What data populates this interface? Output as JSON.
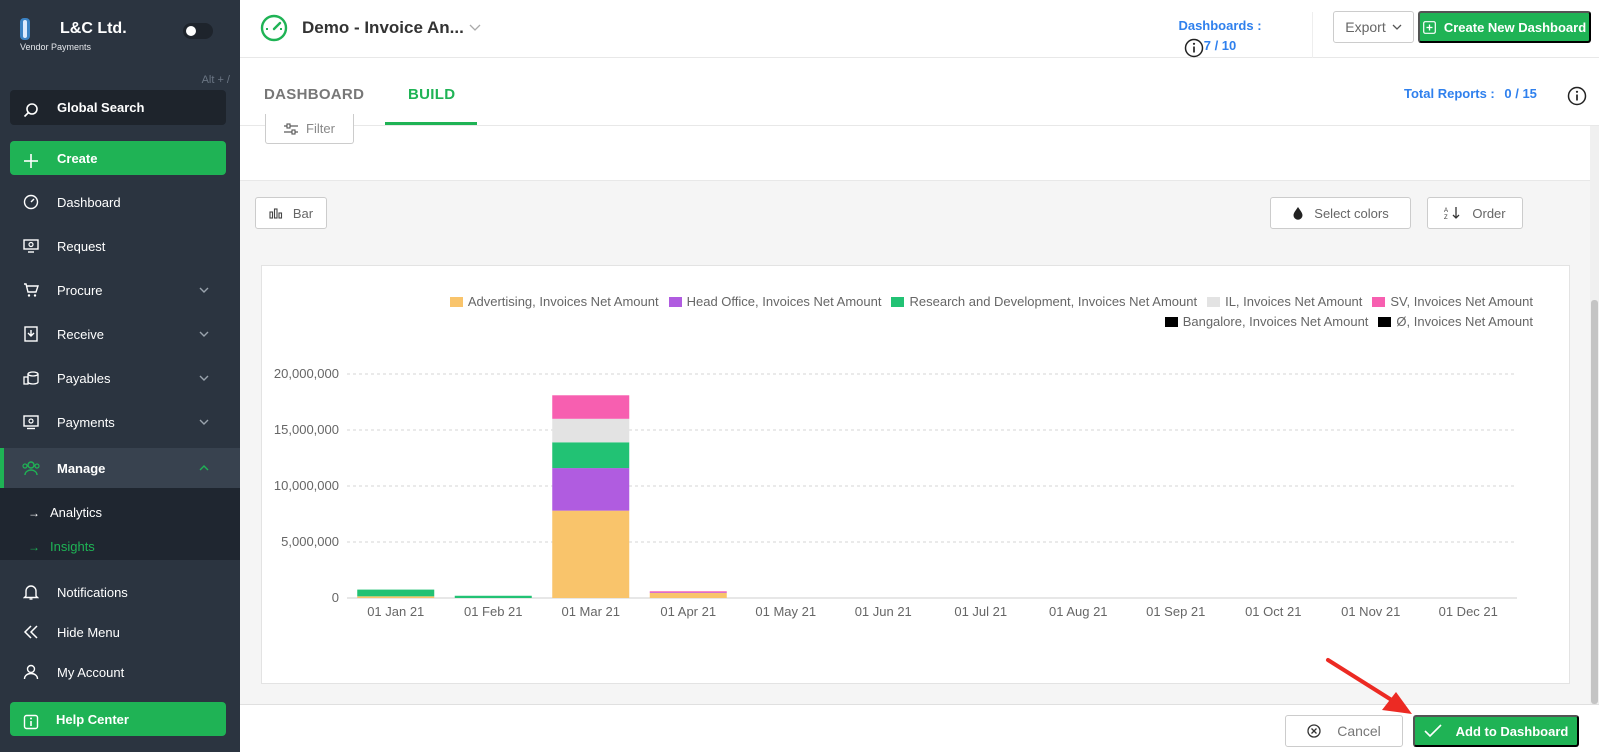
{
  "sidebar": {
    "brand_name": "L&C Ltd.",
    "brand_sub": "Vendor Payments",
    "shortcut": "Alt + /",
    "search_label": "Global Search",
    "create_label": "Create",
    "items": {
      "dashboard": "Dashboard",
      "request": "Request",
      "procure": "Procure",
      "receive": "Receive",
      "payables": "Payables",
      "payments": "Payments",
      "manage": "Manage",
      "analytics": "Analytics",
      "insights": "Insights",
      "notifications": "Notifications",
      "hide_menu": "Hide Menu",
      "my_account": "My Account",
      "help_center": "Help Center"
    },
    "sub_arrow": "→"
  },
  "header": {
    "title": "Demo - Invoice An...",
    "dashboards_label": "Dashboards :",
    "dashboards_value": "7 / 10",
    "export_label": "Export",
    "create_new_label": "Create New Dashboard"
  },
  "tabs": {
    "dashboard": "DASHBOARD",
    "build": "BUILD",
    "total_reports_label": "Total Reports :",
    "total_reports_value": "0  /  15"
  },
  "toolbar": {
    "filter_label": "Filter",
    "bar_label": "Bar",
    "select_colors_label": "Select colors",
    "order_label": "Order"
  },
  "footer": {
    "cancel_label": "Cancel",
    "add_label": "Add to Dashboard"
  },
  "colors": {
    "accent_green": "#1fb355",
    "link_blue": "#2f80ed",
    "sidebar_bg": "#2b3440"
  },
  "chart_data": {
    "type": "bar",
    "stacked": true,
    "categories": [
      "01 Jan 21",
      "01 Feb 21",
      "01 Mar 21",
      "01 Apr 21",
      "01 May 21",
      "01 Jun 21",
      "01 Jul 21",
      "01 Aug 21",
      "01 Sep 21",
      "01 Oct 21",
      "01 Nov 21",
      "01 Dec 21"
    ],
    "ylim": [
      0,
      20000000
    ],
    "yticks": [
      0,
      5000000,
      10000000,
      15000000,
      20000000
    ],
    "ytick_labels": [
      "0",
      "5,000,000",
      "10,000,000",
      "15,000,000",
      "20,000,000"
    ],
    "grid": true,
    "legend_position": "top-right",
    "series": [
      {
        "name": "Advertising, Invoices Net Amount",
        "color": "#f9c46b",
        "values": [
          150000,
          0,
          7800000,
          450000,
          0,
          0,
          0,
          0,
          0,
          0,
          0,
          0
        ]
      },
      {
        "name": "Head Office, Invoices Net Amount",
        "color": "#b05ce0",
        "values": [
          0,
          0,
          3800000,
          50000,
          0,
          0,
          0,
          0,
          0,
          0,
          0,
          0
        ]
      },
      {
        "name": "Research and Development, Invoices Net Amount",
        "color": "#22c274",
        "values": [
          600000,
          200000,
          2300000,
          0,
          0,
          0,
          0,
          0,
          0,
          0,
          0,
          0
        ]
      },
      {
        "name": "IL, Invoices Net Amount",
        "color": "#e3e3e3",
        "values": [
          0,
          0,
          2100000,
          0,
          0,
          0,
          0,
          0,
          0,
          0,
          0,
          0
        ]
      },
      {
        "name": "SV, Invoices Net Amount",
        "color": "#f75fb0",
        "values": [
          0,
          0,
          2100000,
          100000,
          0,
          0,
          0,
          0,
          0,
          0,
          0,
          0
        ]
      },
      {
        "name": "Bangalore, Invoices Net Amount",
        "color": "#000000",
        "values": [
          0,
          0,
          0,
          0,
          0,
          0,
          0,
          0,
          0,
          0,
          0,
          0
        ]
      },
      {
        "name": "Ø, Invoices Net Amount",
        "color": "#000000",
        "values": [
          0,
          0,
          0,
          0,
          0,
          0,
          0,
          0,
          0,
          0,
          0,
          0
        ]
      }
    ]
  }
}
